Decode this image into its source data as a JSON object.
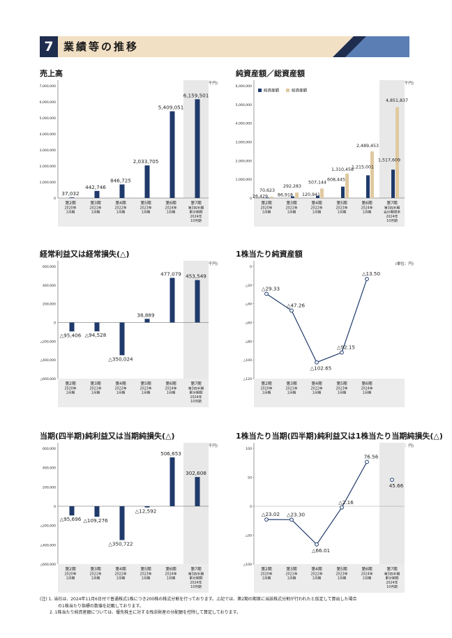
{
  "section": {
    "number": "7",
    "title": "業績等の推移"
  },
  "unit_thousand": "(単位：千円)",
  "unit_yen": "(単位：円)",
  "charts": [
    {
      "id": "sales",
      "title": "売上高",
      "unit": "(単位：千円)",
      "type": "bar",
      "y_ticks": [
        "7,000,000",
        "6,000,000",
        "5,000,000",
        "4,000,000",
        "3,000,000",
        "2,000,000",
        "1,000,000",
        "0"
      ],
      "ylim": [
        0,
        7000000
      ],
      "categories": [
        {
          "label": [
            "第2期",
            "2020年",
            "1月期"
          ]
        },
        {
          "label": [
            "第3期",
            "2021年",
            "1月期"
          ]
        },
        {
          "label": [
            "第4期",
            "2022年",
            "1月期"
          ]
        },
        {
          "label": [
            "第5期",
            "2023年",
            "1月期"
          ]
        },
        {
          "label": [
            "第6期",
            "2024年",
            "1月期"
          ]
        },
        {
          "label": [
            "第7期",
            "第3四半期",
            "累計期間",
            "2024年",
            "10月期"
          ]
        }
      ],
      "values": [
        37032,
        442746,
        846725,
        2033705,
        5409051,
        6159501
      ],
      "value_labels": [
        "37,032",
        "442,746",
        "846,725",
        "2,033,705",
        "5,409,051",
        "6,159,501"
      ]
    },
    {
      "id": "net_assets",
      "title": "純資産額／総資産額",
      "unit": "(単位：千円)",
      "type": "bar-grouped",
      "legend": [
        "純資産額",
        "総資産額"
      ],
      "y_ticks": [
        "6,000,000",
        "5,000,000",
        "4,000,000",
        "3,000,000",
        "2,000,000",
        "1,000,000",
        "0"
      ],
      "ylim": [
        0,
        6000000
      ],
      "categories": [
        {
          "label": [
            "第2期",
            "2020年",
            "1月期"
          ]
        },
        {
          "label": [
            "第3期",
            "2021年",
            "1月期"
          ]
        },
        {
          "label": [
            "第4期",
            "2022年",
            "1月期"
          ]
        },
        {
          "label": [
            "第5期",
            "2023年",
            "1月期"
          ]
        },
        {
          "label": [
            "第6期",
            "2024年",
            "1月期"
          ]
        },
        {
          "label": [
            "第7期",
            "第3四半期",
            "会計期間末",
            "2024年",
            "10月期"
          ]
        }
      ],
      "series": [
        {
          "name": "純資産額",
          "values": [
            26429,
            86918,
            120941,
            608445,
            1215001,
            1517609
          ],
          "labels": [
            "26,429",
            "86,918",
            "120,941",
            "608,445",
            "1,215,001",
            "1,517,609"
          ]
        },
        {
          "name": "総資産額",
          "values": [
            70623,
            292283,
            507144,
            1310458,
            2489453,
            4851837
          ],
          "labels": [
            "70,623",
            "292,283",
            "507,144",
            "1,310,458",
            "2,489,453",
            "4,851,837"
          ]
        }
      ]
    },
    {
      "id": "ordinary",
      "title": "経常利益又は経常損失(△)",
      "unit": "(単位：千円)",
      "type": "bar",
      "y_ticks": [
        "600,000",
        "400,000",
        "200,000",
        "0",
        "△200,000",
        "△400,000",
        "△600,000"
      ],
      "ylim": [
        -600000,
        600000
      ],
      "categories": [
        {
          "label": [
            "第2期",
            "2020年",
            "1月期"
          ]
        },
        {
          "label": [
            "第3期",
            "2021年",
            "1月期"
          ]
        },
        {
          "label": [
            "第4期",
            "2022年",
            "1月期"
          ]
        },
        {
          "label": [
            "第5期",
            "2023年",
            "1月期"
          ]
        },
        {
          "label": [
            "第6期",
            "2024年",
            "1月期"
          ]
        },
        {
          "label": [
            "第7期",
            "第3四半期",
            "累計期間",
            "2024年",
            "10月期"
          ]
        }
      ],
      "values": [
        -95406,
        -94528,
        -350024,
        38889,
        477079,
        453549
      ],
      "value_labels": [
        "△95,406",
        "△94,528",
        "△350,024",
        "38,889",
        "477,079",
        "453,549"
      ]
    },
    {
      "id": "bps",
      "title": "1株当たり純資産額",
      "unit": "(単位：円)",
      "type": "line",
      "y_ticks": [
        "0",
        "△20",
        "△40",
        "△60",
        "△80",
        "△100",
        "△120"
      ],
      "ylim": [
        -120,
        0
      ],
      "categories": [
        {
          "label": [
            "第2期",
            "2020年",
            "1月期"
          ]
        },
        {
          "label": [
            "第3期",
            "2021年",
            "1月期"
          ]
        },
        {
          "label": [
            "第4期",
            "2022年",
            "1月期"
          ]
        },
        {
          "label": [
            "第5期",
            "2023年",
            "1月期"
          ]
        },
        {
          "label": [
            "第6期",
            "2024年",
            "1月期"
          ]
        }
      ],
      "values": [
        -29.33,
        -47.26,
        -102.65,
        -92.15,
        -13.5
      ],
      "value_labels": [
        "△29.33",
        "△47.26",
        "△102.65",
        "△92.15",
        "△13.50"
      ]
    },
    {
      "id": "net_income",
      "title": "当期(四半期)純利益又は当期純損失(△)",
      "unit": "(単位：千円)",
      "type": "bar",
      "y_ticks": [
        "600,000",
        "400,000",
        "200,000",
        "0",
        "△200,000",
        "△400,000",
        "△600,000"
      ],
      "ylim": [
        -600000,
        600000
      ],
      "categories": [
        {
          "label": [
            "第2期",
            "2020年",
            "1月期"
          ]
        },
        {
          "label": [
            "第3期",
            "2021年",
            "1月期"
          ]
        },
        {
          "label": [
            "第4期",
            "2022年",
            "1月期"
          ]
        },
        {
          "label": [
            "第5期",
            "2023年",
            "1月期"
          ]
        },
        {
          "label": [
            "第6期",
            "2024年",
            "1月期"
          ]
        },
        {
          "label": [
            "第7期",
            "第3四半期",
            "累計期間",
            "2024年",
            "10月期"
          ]
        }
      ],
      "values": [
        -95696,
        -109276,
        -350722,
        -12592,
        506653,
        302608
      ],
      "value_labels": [
        "△95,696",
        "△109,276",
        "△350,722",
        "△12,592",
        "506,653",
        "302,608"
      ]
    },
    {
      "id": "eps",
      "title": "1株当たり当期(四半期)純利益又は1株当たり当期純損失(△)",
      "unit": "(単位：円)",
      "type": "line",
      "y_ticks": [
        "100",
        "50",
        "0",
        "△50",
        "△100"
      ],
      "ylim": [
        -100,
        100
      ],
      "categories": [
        {
          "label": [
            "第2期",
            "2020年",
            "1月期"
          ]
        },
        {
          "label": [
            "第3期",
            "2021年",
            "1月期"
          ]
        },
        {
          "label": [
            "第4期",
            "2022年",
            "1月期"
          ]
        },
        {
          "label": [
            "第5期",
            "2023年",
            "1月期"
          ]
        },
        {
          "label": [
            "第6期",
            "2024年",
            "1月期"
          ]
        },
        {
          "label": [
            "第7期",
            "第3四半期",
            "累計期間",
            "2024年",
            "10月期"
          ]
        }
      ],
      "values": [
        -23.02,
        -23.3,
        -66.01,
        -2.16,
        76.56,
        45.66
      ],
      "value_labels": [
        "△23.02",
        "△23.30",
        "△66.01",
        "△2.16",
        "76.56",
        "45.66"
      ]
    }
  ],
  "chart_data": [
    {
      "type": "bar",
      "title": "売上高",
      "categories": [
        "第2期 2020年1月期",
        "第3期 2021年1月期",
        "第4期 2022年1月期",
        "第5期 2023年1月期",
        "第6期 2024年1月期",
        "第7期 第3四半期累計期間 2024年10月期"
      ],
      "values": [
        37032,
        442746,
        846725,
        2033705,
        5409051,
        6159501
      ],
      "ylim": [
        0,
        7000000
      ],
      "ylabel": "(単位：千円)"
    },
    {
      "type": "bar",
      "title": "純資産額／総資産額",
      "categories": [
        "第2期 2020年1月期",
        "第3期 2021年1月期",
        "第4期 2022年1月期",
        "第5期 2023年1月期",
        "第6期 2024年1月期",
        "第7期 第3四半期会計期間末 2024年10月期"
      ],
      "series": [
        {
          "name": "純資産額",
          "values": [
            26429,
            86918,
            120941,
            608445,
            1215001,
            1517609
          ]
        },
        {
          "name": "総資産額",
          "values": [
            70623,
            292283,
            507144,
            1310458,
            2489453,
            4851837
          ]
        }
      ],
      "ylim": [
        0,
        6000000
      ],
      "legend": "top-left"
    },
    {
      "type": "bar",
      "title": "経常利益又は経常損失(△)",
      "categories": [
        "第2期",
        "第3期",
        "第4期",
        "第5期",
        "第6期",
        "第7期"
      ],
      "values": [
        -95406,
        -94528,
        -350024,
        38889,
        477079,
        453549
      ],
      "ylim": [
        -600000,
        600000
      ]
    },
    {
      "type": "line",
      "title": "1株当たり純資産額",
      "categories": [
        "第2期",
        "第3期",
        "第4期",
        "第5期",
        "第6期"
      ],
      "values": [
        -29.33,
        -47.26,
        -102.65,
        -92.15,
        -13.5
      ],
      "ylim": [
        -120,
        0
      ]
    },
    {
      "type": "bar",
      "title": "当期(四半期)純利益又は当期純損失(△)",
      "categories": [
        "第2期",
        "第3期",
        "第4期",
        "第5期",
        "第6期",
        "第7期"
      ],
      "values": [
        -95696,
        -109276,
        -350722,
        -12592,
        506653,
        302608
      ],
      "ylim": [
        -600000,
        600000
      ]
    },
    {
      "type": "line",
      "title": "1株当たり当期(四半期)純利益又は1株当たり当期純損失(△)",
      "categories": [
        "第2期",
        "第3期",
        "第4期",
        "第5期",
        "第6期",
        "第7期"
      ],
      "values": [
        -23.02,
        -23.3,
        -66.01,
        -2.16,
        76.56,
        45.66
      ],
      "ylim": [
        -100,
        100
      ]
    }
  ],
  "notes": [
    "(注) 1. 当社は、2024年11月6日付で普通株式1株につき200株の株式分割を行っております。上記では、第2期の期首に当該株式分割が行われたと仮定して算出した場合",
    "の1株当たり指標の数値を記載しております。",
    "2. 1株当たり純資産額については、優先株主に対する残余財産の分配額を控除して算定しております。"
  ],
  "colors": {
    "navy": "#1f3a6b",
    "beige": "#e0c9a0",
    "shade": "#e6e6e6",
    "header_bg": "#f2e0c4",
    "header_blue": "#5b7fb5"
  }
}
